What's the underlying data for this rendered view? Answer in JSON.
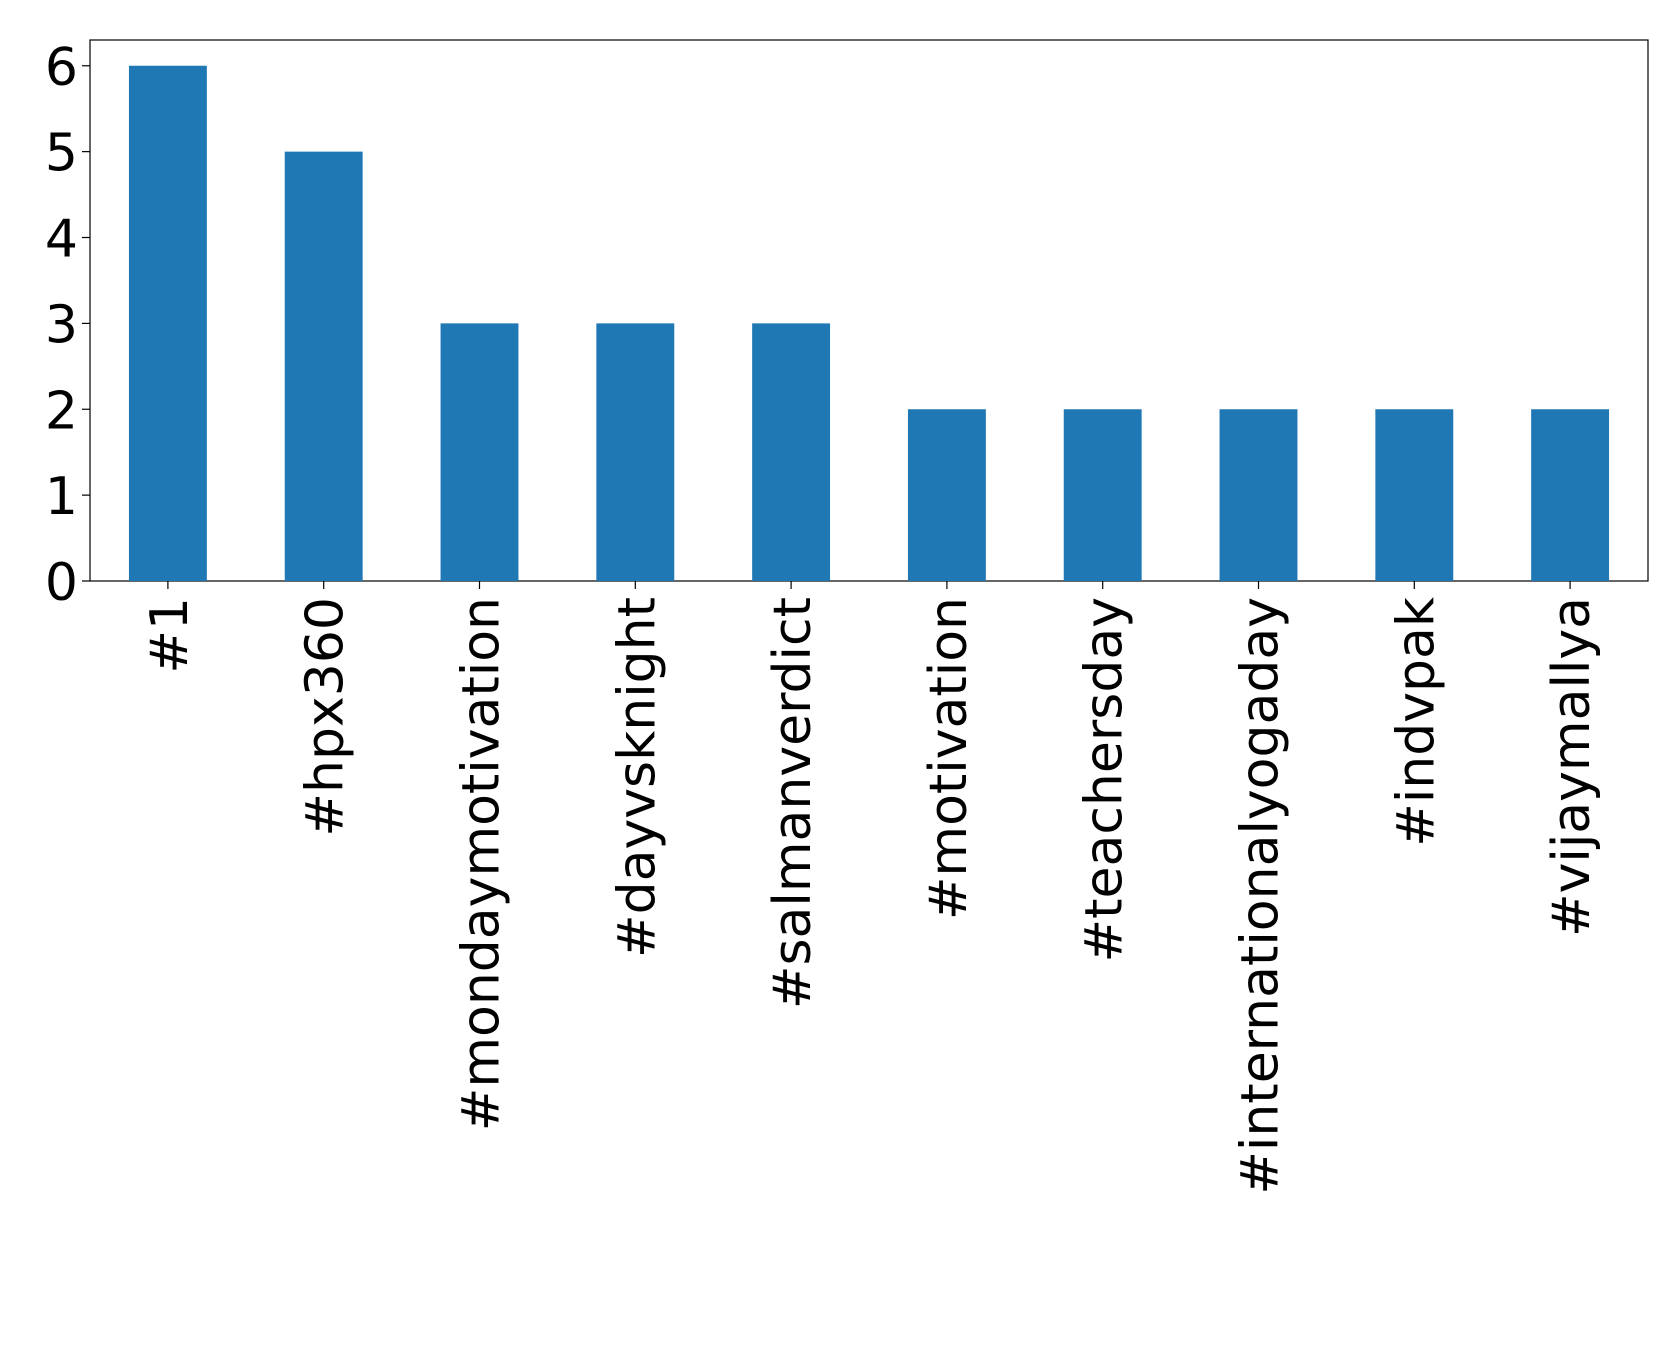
{
  "chart_data": {
    "type": "bar",
    "categories": [
      "#1",
      "#hpx360",
      "#mondaymotivation",
      "#dayvsknight",
      "#salmanverdict",
      "#motivation",
      "#teachersday",
      "#internationalyogaday",
      "#indvpak",
      "#vijaymallya"
    ],
    "values": [
      6,
      5,
      3,
      3,
      3,
      2,
      2,
      2,
      2,
      2
    ],
    "color": "#1f77b4",
    "ylim": [
      0,
      6.3
    ],
    "yticks": [
      0,
      1,
      2,
      3,
      4,
      5,
      6
    ],
    "grid": false
  }
}
